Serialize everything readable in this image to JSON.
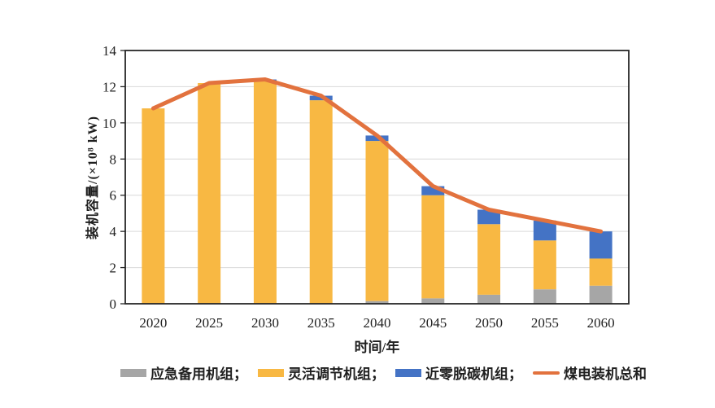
{
  "chart_data": {
    "type": "bar",
    "stacked": true,
    "categories": [
      "2020",
      "2025",
      "2030",
      "2035",
      "2040",
      "2045",
      "2050",
      "2055",
      "2060"
    ],
    "series": [
      {
        "name": "应急备用机组",
        "color": "#A6A6A6",
        "values": [
          0,
          0,
          0,
          0,
          0.15,
          0.3,
          0.5,
          0.8,
          1.0
        ]
      },
      {
        "name": "灵活调节机组",
        "color": "#F8B843",
        "values": [
          10.8,
          12.2,
          12.3,
          11.25,
          8.85,
          5.7,
          3.9,
          2.7,
          1.5
        ]
      },
      {
        "name": "近零脱碳机组",
        "color": "#4473C5",
        "values": [
          0,
          0,
          0.1,
          0.25,
          0.3,
          0.5,
          0.8,
          1.1,
          1.5
        ]
      }
    ],
    "line_series": {
      "name": "煤电装机总和",
      "color": "#E2723E",
      "values": [
        10.8,
        12.2,
        12.4,
        11.5,
        9.3,
        6.5,
        5.2,
        4.6,
        4.0
      ]
    },
    "title": "",
    "xlabel": "时间/年",
    "ylabel": "装机容量/(×10⁸ kW)",
    "ylim": [
      0,
      14
    ],
    "yticks": [
      0,
      2,
      4,
      6,
      8,
      10,
      12,
      14
    ],
    "grid": true,
    "legend_position": "bottom",
    "frame_color": "#262626",
    "grid_color": "#D9D9D9"
  },
  "legend": {
    "items": [
      {
        "label": "应急备用机组；",
        "swatch": "rect",
        "color": "#A6A6A6"
      },
      {
        "label": "灵活调节机组；",
        "swatch": "rect",
        "color": "#F8B843"
      },
      {
        "label": "近零脱碳机组；",
        "swatch": "rect",
        "color": "#4473C5"
      },
      {
        "label": "煤电装机总和",
        "swatch": "line",
        "color": "#E2723E"
      }
    ]
  }
}
